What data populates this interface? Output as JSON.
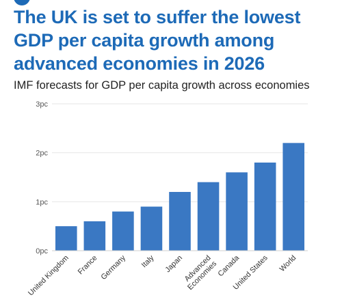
{
  "header": {
    "title": "The UK is set to suffer the lowest GDP per capita growth among advanced economies in 2026",
    "subtitle": "IMF forecasts for GDP per capita growth across economies"
  },
  "colors": {
    "accent": "#1d6ab7",
    "bar": "#3a78c3",
    "grid": "#e6e6e6"
  },
  "chart_data": {
    "type": "bar",
    "title": "The UK is set to suffer the lowest GDP per capita growth among advanced economies in 2026",
    "subtitle": "IMF forecasts for GDP per capita growth across economies",
    "categories": [
      [
        "United Kingdom"
      ],
      [
        "France"
      ],
      [
        "Germany"
      ],
      [
        "Italy"
      ],
      [
        "Japan"
      ],
      [
        "Advanced",
        "Economies"
      ],
      [
        "Canada"
      ],
      [
        "United States"
      ],
      [
        "World"
      ]
    ],
    "values": [
      0.5,
      0.6,
      0.8,
      0.9,
      1.2,
      1.4,
      1.6,
      1.8,
      2.2
    ],
    "yticks": [
      {
        "value": 0,
        "label": "0pc"
      },
      {
        "value": 1,
        "label": "1pc"
      },
      {
        "value": 2,
        "label": "2pc"
      },
      {
        "value": 3,
        "label": "3pc"
      }
    ],
    "ylim": [
      0,
      3
    ],
    "grid": true,
    "legend": "none",
    "xlabel": "",
    "ylabel": ""
  }
}
